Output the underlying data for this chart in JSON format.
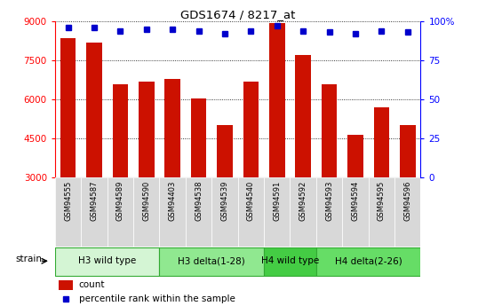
{
  "title": "GDS1674 / 8217_at",
  "samples": [
    "GSM94555",
    "GSM94587",
    "GSM94589",
    "GSM94590",
    "GSM94403",
    "GSM94538",
    "GSM94539",
    "GSM94540",
    "GSM94591",
    "GSM94592",
    "GSM94593",
    "GSM94594",
    "GSM94595",
    "GSM94596"
  ],
  "counts": [
    8350,
    8200,
    6600,
    6700,
    6800,
    6050,
    5000,
    6700,
    8950,
    7700,
    6600,
    4650,
    5700,
    5000
  ],
  "percentiles": [
    96,
    96,
    94,
    95,
    95,
    94,
    92,
    94,
    97,
    94,
    93,
    92,
    94,
    93
  ],
  "ylim_left": [
    3000,
    9000
  ],
  "ylim_right": [
    0,
    100
  ],
  "yticks_left": [
    3000,
    4500,
    6000,
    7500,
    9000
  ],
  "yticks_right": [
    0,
    25,
    50,
    75,
    100
  ],
  "groups": [
    {
      "label": "H3 wild type",
      "start": 0,
      "end": 4,
      "color": "#d4f5d4"
    },
    {
      "label": "H3 delta(1-28)",
      "start": 4,
      "end": 8,
      "color": "#90e890"
    },
    {
      "label": "H4 wild type",
      "start": 8,
      "end": 10,
      "color": "#44cc44"
    },
    {
      "label": "H4 delta(2-26)",
      "start": 10,
      "end": 14,
      "color": "#66dd66"
    }
  ],
  "bar_color": "#cc1100",
  "dot_color": "#0000cc",
  "tick_bg_color": "#d8d8d8",
  "legend_count_label": "count",
  "legend_pct_label": "percentile rank within the sample"
}
